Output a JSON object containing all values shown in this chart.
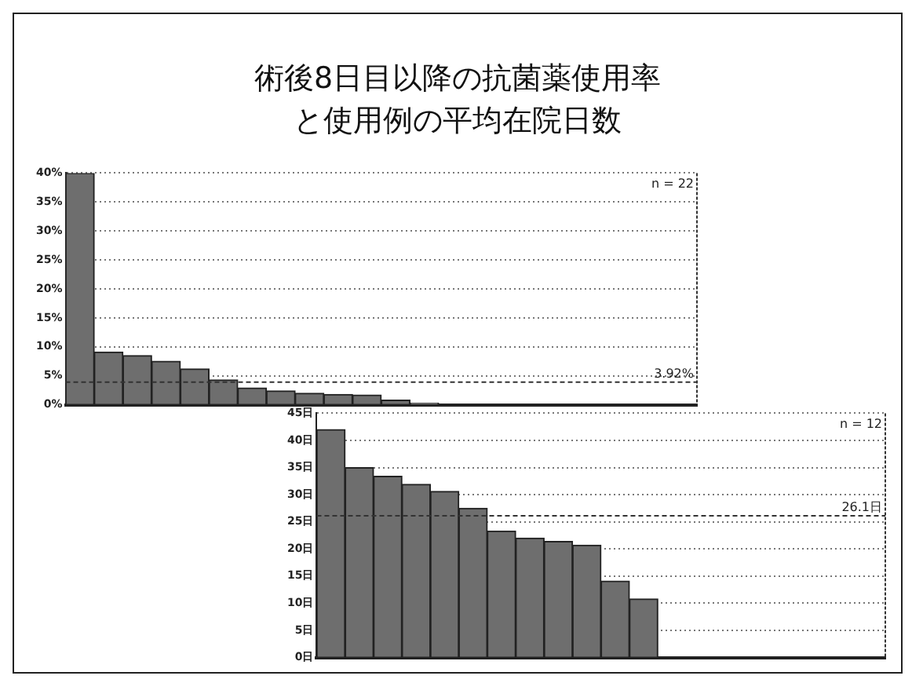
{
  "chart_data": [
    {
      "type": "bar",
      "title": "術後8日目以降の抗菌薬使用率と使用例の平均在院日数",
      "categories": [
        null,
        null,
        null,
        null,
        null,
        null,
        null,
        null,
        null,
        null,
        null,
        null,
        null,
        null,
        null,
        null,
        null,
        null,
        null,
        null,
        null,
        null
      ],
      "values": [
        40,
        9.1,
        8.5,
        7.5,
        6.2,
        4.3,
        2.9,
        2.4,
        2,
        1.8,
        1.7,
        0.8,
        0.3,
        0,
        0,
        0,
        0,
        0,
        0,
        0,
        0,
        0
      ],
      "color": "#6e6e6e",
      "ylim": [
        0,
        40
      ],
      "yticks": [
        {
          "value": 0,
          "label": "0%"
        },
        {
          "value": 5,
          "label": "5%"
        },
        {
          "value": 10,
          "label": "10%"
        },
        {
          "value": 15,
          "label": "15%"
        },
        {
          "value": 20,
          "label": "20%"
        },
        {
          "value": 25,
          "label": "25%"
        },
        {
          "value": 30,
          "label": "30%"
        },
        {
          "value": 35,
          "label": "35%"
        },
        {
          "value": 40,
          "label": "40%"
        }
      ],
      "grid": "y",
      "tick_labels": "y",
      "ref_lines": [
        {
          "axis": "y",
          "value": 3.92,
          "label": "3.92%",
          "line_style": "dashed"
        }
      ],
      "annotations": [
        "n = 22"
      ]
    },
    {
      "type": "bar",
      "categories": [
        null,
        null,
        null,
        null,
        null,
        null,
        null,
        null,
        null,
        null,
        null,
        null,
        null,
        null,
        null,
        null,
        null,
        null,
        null,
        null
      ],
      "values": [
        42,
        35,
        33.4,
        31.9,
        30.6,
        27.5,
        23.3,
        22,
        21.4,
        20.7,
        14.1,
        10.8,
        null,
        null,
        null,
        null,
        null,
        null,
        null,
        null
      ],
      "color": "#6e6e6e",
      "ylim": [
        0,
        45
      ],
      "yticks": [
        {
          "value": 0,
          "label": "0日"
        },
        {
          "value": 5,
          "label": "5日"
        },
        {
          "value": 10,
          "label": "10日"
        },
        {
          "value": 15,
          "label": "15日"
        },
        {
          "value": 20,
          "label": "20日"
        },
        {
          "value": 25,
          "label": "25日"
        },
        {
          "value": 30,
          "label": "30日"
        },
        {
          "value": 35,
          "label": "35日"
        },
        {
          "value": 40,
          "label": "40日"
        },
        {
          "value": 45,
          "label": "45日"
        }
      ],
      "grid": "y",
      "tick_labels": "y",
      "ref_lines": [
        {
          "axis": "y",
          "value": 26.1,
          "label": "26.1日",
          "line_style": "dashed"
        }
      ],
      "annotations": [
        "n = 12"
      ]
    }
  ]
}
